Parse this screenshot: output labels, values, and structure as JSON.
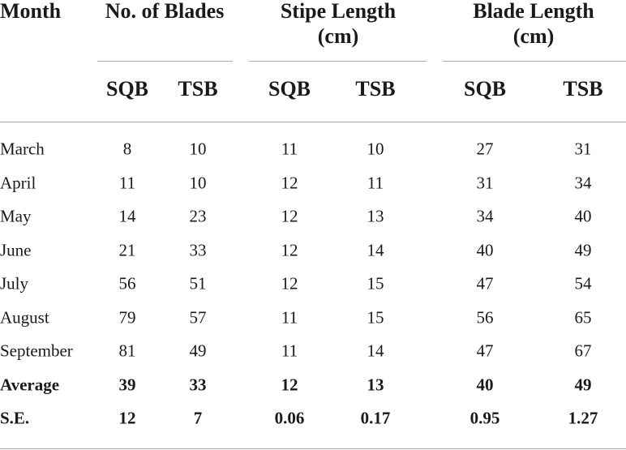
{
  "table": {
    "header": {
      "month": "Month",
      "groups": [
        {
          "lines": [
            "No. of Blades"
          ],
          "sub": [
            "SQB",
            "TSB"
          ]
        },
        {
          "lines": [
            "Stipe Length",
            "(cm)"
          ],
          "sub": [
            "SQB",
            "TSB"
          ]
        },
        {
          "lines": [
            "Blade Length",
            "(cm)"
          ],
          "sub": [
            "SQB",
            "TSB"
          ]
        }
      ]
    },
    "rows": [
      [
        "March",
        "8",
        "10",
        "11",
        "10",
        "27",
        "31"
      ],
      [
        "April",
        "11",
        "10",
        "12",
        "11",
        "31",
        "34"
      ],
      [
        "May",
        "14",
        "23",
        "12",
        "13",
        "34",
        "40"
      ],
      [
        "June",
        "21",
        "33",
        "12",
        "14",
        "40",
        "49"
      ],
      [
        "July",
        "56",
        "51",
        "12",
        "15",
        "47",
        "54"
      ],
      [
        "August",
        "79",
        "57",
        "11",
        "15",
        "56",
        "65"
      ],
      [
        "September",
        "81",
        "49",
        "11",
        "14",
        "47",
        "67"
      ],
      [
        "Average",
        "39",
        "33",
        "12",
        "13",
        "40",
        "49"
      ],
      [
        "S.E.",
        "12",
        "7",
        "0.06",
        "0.17",
        "0.95",
        "1.27"
      ]
    ],
    "bold_rows": [
      7,
      8
    ]
  }
}
